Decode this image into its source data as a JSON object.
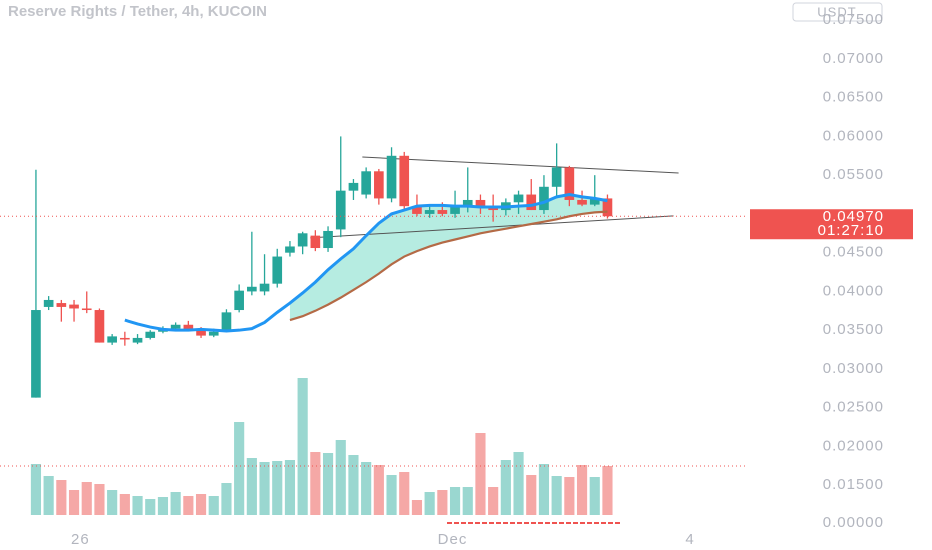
{
  "chart_data": {
    "type": "candlestick",
    "title": "Reserve Rights / Tether, 4h, KUCOIN",
    "currency": "USDT",
    "x": [
      0,
      1,
      2,
      3,
      4,
      5,
      6,
      7,
      8,
      9,
      10,
      11,
      12,
      13,
      14,
      15,
      16,
      17,
      18,
      19,
      20,
      21,
      22,
      23,
      24,
      25,
      26,
      27,
      28,
      29,
      30,
      31,
      32,
      33,
      34,
      35,
      36,
      37,
      38,
      39,
      40,
      41,
      42,
      43,
      44,
      45
    ],
    "open": [
      0.0263,
      0.038,
      0.0385,
      0.0383,
      0.0378,
      0.0376,
      0.0334,
      0.034,
      0.0334,
      0.034,
      0.0348,
      0.0352,
      0.0357,
      0.035,
      0.0343,
      0.035,
      0.0376,
      0.04,
      0.04,
      0.041,
      0.045,
      0.0458,
      0.0472,
      0.0456,
      0.048,
      0.053,
      0.0525,
      0.0555,
      0.052,
      0.0575,
      0.051,
      0.05,
      0.0505,
      0.05,
      0.051,
      0.0518,
      0.051,
      0.0505,
      0.0515,
      0.0525,
      0.0505,
      0.0535,
      0.056,
      0.0518,
      0.0512,
      0.052
    ],
    "high": [
      0.0557,
      0.0394,
      0.0389,
      0.0389,
      0.04,
      0.0378,
      0.0345,
      0.0348,
      0.0345,
      0.035,
      0.0355,
      0.036,
      0.0362,
      0.0354,
      0.0352,
      0.0377,
      0.0409,
      0.0477,
      0.0448,
      0.0455,
      0.0465,
      0.0477,
      0.0479,
      0.0484,
      0.06,
      0.0545,
      0.056,
      0.0558,
      0.0586,
      0.058,
      0.0525,
      0.051,
      0.0515,
      0.053,
      0.056,
      0.0525,
      0.0525,
      0.052,
      0.053,
      0.0545,
      0.055,
      0.0591,
      0.0562,
      0.053,
      0.055,
      0.0525
    ],
    "low": [
      0.0263,
      0.0376,
      0.0361,
      0.0361,
      0.0372,
      0.0334,
      0.0331,
      0.033,
      0.0332,
      0.0338,
      0.0346,
      0.035,
      0.0349,
      0.034,
      0.0341,
      0.0348,
      0.0373,
      0.0395,
      0.0395,
      0.0405,
      0.0445,
      0.0448,
      0.0452,
      0.0451,
      0.047,
      0.0518,
      0.052,
      0.0512,
      0.0515,
      0.0505,
      0.0497,
      0.0495,
      0.0497,
      0.0495,
      0.0502,
      0.05,
      0.049,
      0.0498,
      0.05,
      0.0505,
      0.05,
      0.052,
      0.051,
      0.051,
      0.051,
      0.0494
    ],
    "close": [
      0.0376,
      0.0389,
      0.038,
      0.0378,
      0.0376,
      0.0334,
      0.0342,
      0.0338,
      0.034,
      0.0348,
      0.0352,
      0.0357,
      0.0351,
      0.0343,
      0.0348,
      0.0373,
      0.0401,
      0.0406,
      0.041,
      0.0445,
      0.0458,
      0.0475,
      0.0456,
      0.0478,
      0.053,
      0.054,
      0.0555,
      0.052,
      0.0575,
      0.051,
      0.05,
      0.0505,
      0.05,
      0.051,
      0.0518,
      0.051,
      0.0505,
      0.0515,
      0.0525,
      0.0505,
      0.0535,
      0.056,
      0.0518,
      0.0512,
      0.052,
      0.0497
    ],
    "volume": [
      51,
      39,
      35,
      25,
      33,
      31,
      25,
      21,
      19,
      16,
      18,
      23,
      19,
      21,
      19,
      32,
      93,
      57,
      53,
      54,
      55,
      137,
      63,
      62,
      75,
      60,
      53,
      50,
      40,
      43,
      15,
      23,
      25,
      28,
      28,
      82,
      28,
      55,
      63,
      40,
      51,
      39,
      38,
      50,
      38,
      49
    ],
    "lines": [
      {
        "color": "#2196f3",
        "values": [
          null,
          null,
          null,
          null,
          null,
          null,
          null,
          0.0363,
          0.0358,
          0.0354,
          0.0351,
          0.035,
          0.035,
          0.0351,
          0.035,
          0.0349,
          0.035,
          0.0352,
          0.036,
          0.0373,
          0.0385,
          0.0398,
          0.0412,
          0.0428,
          0.0442,
          0.0455,
          0.0472,
          0.0488,
          0.05,
          0.0505,
          0.051,
          0.0511,
          0.0511,
          0.051,
          0.051,
          0.0509,
          0.0509,
          0.0509,
          0.051,
          0.0511,
          0.0515,
          0.0522,
          0.0525,
          0.0522,
          0.052,
          0.0517
        ]
      },
      {
        "color": "#b46a46",
        "values": [
          null,
          null,
          null,
          null,
          null,
          null,
          null,
          null,
          null,
          null,
          null,
          null,
          null,
          null,
          null,
          null,
          null,
          null,
          null,
          null,
          0.0363,
          0.0368,
          0.0375,
          0.0383,
          0.0392,
          0.0402,
          0.0412,
          0.0423,
          0.0435,
          0.0445,
          0.0452,
          0.0458,
          0.0463,
          0.0467,
          0.0471,
          0.0475,
          0.0478,
          0.0481,
          0.0484,
          0.0487,
          0.049,
          0.0493,
          0.0497,
          0.05,
          0.0502,
          0.0503
        ]
      }
    ],
    "trendlines": [
      {
        "x": [
          25.7,
          50.6
        ],
        "y": [
          0.05734,
          0.05528
        ]
      },
      {
        "x": [
          21.6,
          50.2
        ],
        "y": [
          0.04691,
          0.04974
        ]
      }
    ],
    "up_color": "#26a69a",
    "down_color": "#ef5350",
    "up_volume_color": "#9ad7d0",
    "down_volume_color": "#f5a8a6",
    "current_price": {
      "value": 0.0497,
      "label": "0.04970"
    },
    "countdown": "01:27:10",
    "xlim": [
      -2.83,
      55.83
    ],
    "xticks": [
      {
        "value": 3.5,
        "label": "26"
      },
      {
        "value": 32.8,
        "label": "Dec"
      },
      {
        "value": 51.5,
        "label": "4"
      }
    ],
    "ylim": [
      0.0118,
      0.0776
    ],
    "yticks": [
      {
        "value": 0.075,
        "label": "0.07500"
      },
      {
        "value": 0.07,
        "label": "0.07000"
      },
      {
        "value": 0.065,
        "label": "0.06500"
      },
      {
        "value": 0.06,
        "label": "0.06000"
      },
      {
        "value": 0.055,
        "label": "0.05500"
      },
      {
        "value": 0.045,
        "label": "0.04500"
      },
      {
        "value": 0.04,
        "label": "0.04000"
      },
      {
        "value": 0.035,
        "label": "0.03500"
      },
      {
        "value": 0.03,
        "label": "0.03000"
      },
      {
        "value": 0.025,
        "label": "0.02500"
      },
      {
        "value": 0.02,
        "label": "0.02000"
      },
      {
        "value": 0.015,
        "label": "0.01500"
      }
    ],
    "y2lim": [
      0,
      515
    ],
    "y2ticks": [
      {
        "value": 0,
        "label": "0.00000"
      }
    ]
  }
}
